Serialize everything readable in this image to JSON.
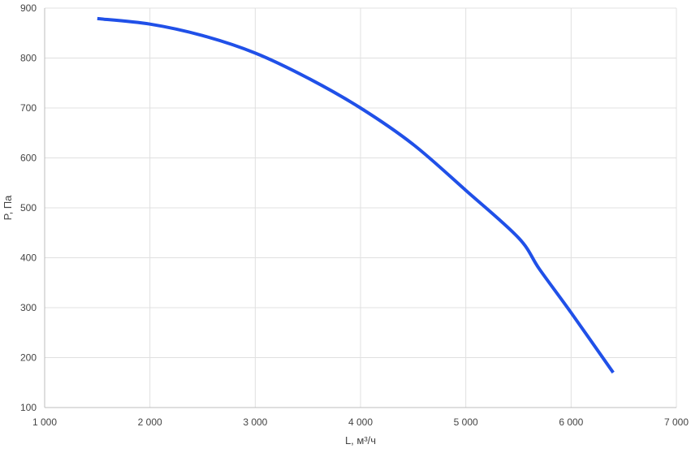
{
  "chart_data": {
    "type": "line",
    "title": "",
    "xlabel": "L, м³/ч",
    "ylabel": "P, Па",
    "xlim": [
      1000,
      7000
    ],
    "ylim": [
      100,
      900
    ],
    "x_ticks": [
      1000,
      2000,
      3000,
      4000,
      5000,
      6000,
      7000
    ],
    "x_tick_labels": [
      "1 000",
      "2 000",
      "3 000",
      "4 000",
      "5 000",
      "6 000",
      "7 000"
    ],
    "y_ticks": [
      100,
      200,
      300,
      400,
      500,
      600,
      700,
      800,
      900
    ],
    "y_tick_labels": [
      "100",
      "200",
      "300",
      "400",
      "500",
      "600",
      "700",
      "800",
      "900"
    ],
    "grid": true,
    "legend": "none",
    "series": [
      {
        "color": "#2050e8",
        "points": [
          [
            1500,
            879
          ],
          [
            2000,
            868
          ],
          [
            2500,
            845
          ],
          [
            3000,
            810
          ],
          [
            3500,
            760
          ],
          [
            4000,
            700
          ],
          [
            4500,
            627
          ],
          [
            5000,
            535
          ],
          [
            5500,
            440
          ],
          [
            5700,
            377
          ],
          [
            6000,
            290
          ],
          [
            6400,
            170
          ]
        ]
      }
    ],
    "colors": {
      "grid": "#e0e0e0",
      "axis": "#bdbdbd",
      "line": "#2050e8"
    }
  }
}
